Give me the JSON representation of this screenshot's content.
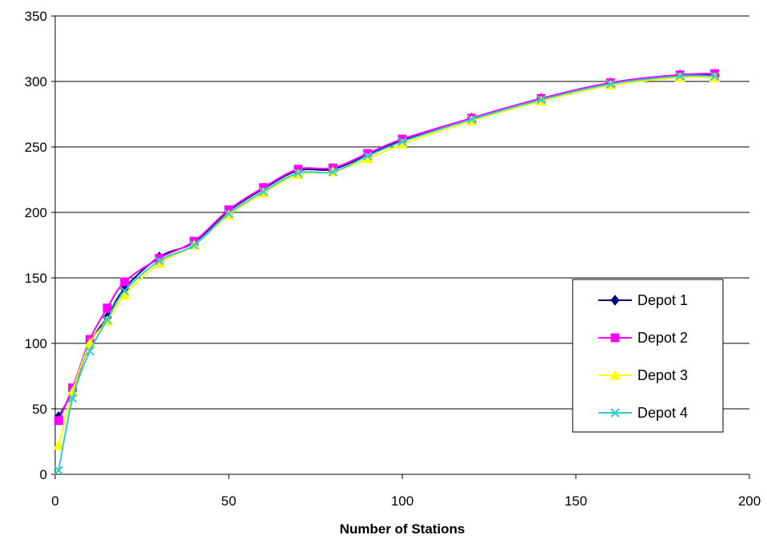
{
  "chart_data": {
    "type": "line",
    "xlabel": "Number of Stations",
    "ylabel": "",
    "xlim": [
      0,
      200
    ],
    "ylim": [
      0,
      350
    ],
    "xticks": [
      0,
      50,
      100,
      150,
      200
    ],
    "yticks": [
      0,
      50,
      100,
      150,
      200,
      250,
      300,
      350
    ],
    "grid": "horizontal",
    "legend_position": "right",
    "x": [
      1,
      5,
      10,
      15,
      20,
      30,
      40,
      50,
      60,
      70,
      80,
      90,
      100,
      120,
      140,
      160,
      180,
      190
    ],
    "series": [
      {
        "name": "Depot 1",
        "color": "#000080",
        "marker": "diamond",
        "values": [
          44,
          64,
          100,
          120,
          142,
          166,
          177,
          201,
          218,
          232,
          233,
          244,
          255,
          272,
          287,
          299,
          305,
          305
        ]
      },
      {
        "name": "Depot 2",
        "color": "#FF00FF",
        "marker": "square",
        "values": [
          41,
          66,
          103,
          127,
          147,
          165,
          178,
          202,
          219,
          233,
          234,
          245,
          256,
          272,
          287,
          299,
          305,
          306
        ]
      },
      {
        "name": "Depot 3",
        "color": "#FFFF00",
        "marker": "triangle",
        "values": [
          22,
          63,
          100,
          117,
          137,
          161,
          175,
          198,
          215,
          229,
          231,
          241,
          252,
          270,
          285,
          297,
          303,
          303
        ]
      },
      {
        "name": "Depot 4",
        "color": "#33CCCC",
        "marker": "x",
        "values": [
          3,
          58,
          94,
          118,
          140,
          163,
          175,
          199,
          216,
          230,
          231,
          243,
          254,
          271,
          286,
          298,
          304,
          304
        ]
      }
    ]
  }
}
